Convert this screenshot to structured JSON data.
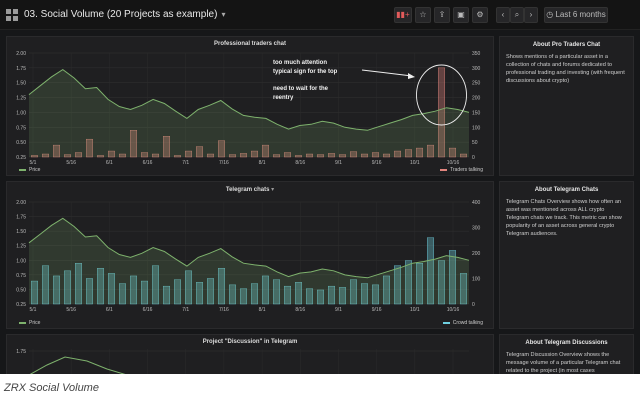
{
  "dashboard": {
    "title": "03. Social Volume (20 Projects as example)",
    "time_range_label": "Last 6 months"
  },
  "colors": {
    "price": "#7eb26d",
    "traders": "#e2857e",
    "crowd": "#6ed0e0"
  },
  "panels": [
    {
      "title": "Professional traders chat",
      "legend_left": "Price",
      "legend_right": "Traders talking",
      "annotation": {
        "line1": "too much attention",
        "line2": "typical sign for the top",
        "line3": "need to wait for the",
        "line4": "reentry"
      }
    },
    {
      "title": "Telegram chats",
      "legend_left": "Price",
      "legend_right": "Crowd talking"
    },
    {
      "title": "Project \"Discussion\" in Telegram"
    }
  ],
  "side": [
    {
      "title": "About Pro Traders Chat",
      "text": "Shows mentions of a particular asset in a collection of chats and forums dedicated to professional trading and investing (with frequent discussions about crypto)"
    },
    {
      "title": "About Telegram Chats",
      "text": "Telegram Chats Overview shows how often an asset was mentioned across ALL crypto Telegram chats we track. This metric can show popularity of an asset across general crypto Telegram audiences."
    },
    {
      "title": "About Telegram Discussions",
      "text": "Telegram Discussion Overview shows the message volume of a particular Telegram chat related to the project (in most cases"
    }
  ],
  "caption": "ZRX Social Volume",
  "chart_data": [
    {
      "type": "line",
      "title": "Professional traders chat",
      "x_ticks": [
        "5/1",
        "5/16",
        "6/1",
        "6/16",
        "7/1",
        "7/16",
        "8/1",
        "8/16",
        "9/1",
        "9/16",
        "10/1",
        "10/16"
      ],
      "ylim_left": [
        0.25,
        2.0
      ],
      "y_ticks_left": [
        "2.00",
        "1.75",
        "1.50",
        "1.25",
        "1.00",
        "0.75",
        "0.50",
        "0.25"
      ],
      "ylim_right": [
        0,
        350
      ],
      "y_ticks_right": [
        "350",
        "300",
        "250",
        "200",
        "150",
        "100",
        "50",
        "0"
      ],
      "series": [
        {
          "name": "Price",
          "axis": "left",
          "values": [
            1.3,
            1.45,
            1.6,
            1.72,
            1.58,
            1.4,
            1.42,
            1.22,
            1.1,
            1.05,
            1.12,
            1.22,
            1.15,
            1.02,
            0.9,
            1.05,
            1.12,
            1.2,
            1.06,
            0.95,
            0.92,
            0.9,
            0.8,
            0.72,
            0.78,
            0.8,
            0.85,
            0.82,
            0.75,
            0.72,
            0.7,
            0.76,
            0.82,
            0.88,
            0.95,
            0.98,
            1.02,
            1.08,
            1.05,
            1.0
          ]
        },
        {
          "name": "Traders talking",
          "axis": "right",
          "values": [
            5,
            10,
            40,
            8,
            15,
            60,
            5,
            20,
            10,
            90,
            15,
            10,
            70,
            5,
            20,
            35,
            10,
            55,
            8,
            12,
            20,
            40,
            8,
            15,
            5,
            10,
            8,
            12,
            8,
            18,
            10,
            15,
            10,
            20,
            25,
            30,
            40,
            300,
            30,
            10
          ]
        }
      ]
    },
    {
      "type": "line",
      "title": "Telegram chats",
      "x_ticks": [
        "5/1",
        "5/16",
        "6/1",
        "6/16",
        "7/1",
        "7/16",
        "8/1",
        "8/16",
        "9/1",
        "9/16",
        "10/1",
        "10/16"
      ],
      "ylim_left": [
        0.25,
        2.0
      ],
      "y_ticks_left": [
        "2.00",
        "1.75",
        "1.50",
        "1.25",
        "1.00",
        "0.75",
        "0.50",
        "0.25"
      ],
      "ylim_right": [
        0,
        400
      ],
      "y_ticks_right": [
        "400",
        "300",
        "200",
        "100",
        "0"
      ],
      "series": [
        {
          "name": "Price",
          "axis": "left",
          "values": [
            1.3,
            1.45,
            1.6,
            1.72,
            1.58,
            1.4,
            1.42,
            1.22,
            1.1,
            1.05,
            1.12,
            1.22,
            1.15,
            1.02,
            0.9,
            1.05,
            1.12,
            1.2,
            1.06,
            0.95,
            0.92,
            0.9,
            0.8,
            0.72,
            0.78,
            0.8,
            0.85,
            0.82,
            0.75,
            0.72,
            0.7,
            0.76,
            0.82,
            0.88,
            0.95,
            0.98,
            1.02,
            1.08,
            1.05,
            1.0
          ]
        },
        {
          "name": "Crowd talking",
          "axis": "right",
          "values": [
            90,
            150,
            110,
            130,
            160,
            100,
            140,
            120,
            80,
            110,
            90,
            150,
            70,
            95,
            130,
            85,
            100,
            140,
            75,
            60,
            80,
            110,
            95,
            70,
            85,
            60,
            55,
            70,
            65,
            95,
            80,
            75,
            110,
            150,
            170,
            160,
            260,
            170,
            210,
            120
          ]
        }
      ]
    },
    {
      "type": "line",
      "title": "Project \"Discussion\" in Telegram",
      "y_ticks_left": [
        "1.75"
      ]
    }
  ]
}
